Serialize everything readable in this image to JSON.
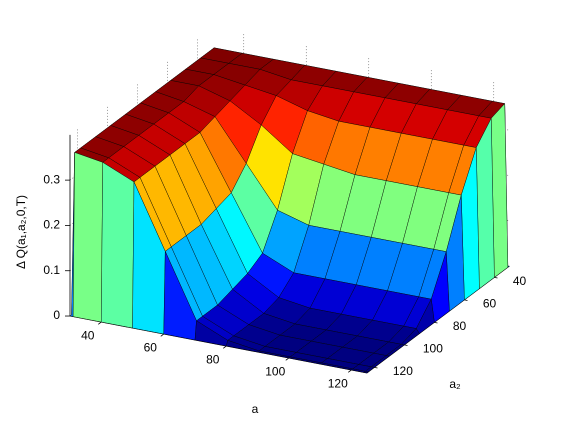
{
  "chart_data": {
    "type": "surface",
    "xlabel": "a",
    "ylabel": "a₂",
    "zlabel": "Δ Q(a₁,a₂,0,T)",
    "x": [
      30,
      31,
      40,
      50,
      60,
      70,
      80,
      90,
      100,
      110,
      120,
      124,
      125
    ],
    "y": [
      30,
      31,
      40,
      50,
      60,
      70,
      80,
      90,
      100,
      110,
      120,
      124,
      125
    ],
    "z": [
      [
        0,
        0,
        0,
        0,
        0,
        0,
        0,
        0,
        0,
        0,
        0,
        0,
        0
      ],
      [
        0,
        0.36,
        0.36,
        0.36,
        0.36,
        0.36,
        0.36,
        0.36,
        0.36,
        0.36,
        0.36,
        0.36,
        0
      ],
      [
        0,
        0.36,
        0.36,
        0.36,
        0.35,
        0.35,
        0.35,
        0.35,
        0.35,
        0.35,
        0.35,
        0.35,
        0
      ],
      [
        0,
        0.36,
        0.36,
        0.35,
        0.34,
        0.32,
        0.31,
        0.31,
        0.31,
        0.31,
        0.31,
        0.31,
        0
      ],
      [
        0,
        0.36,
        0.36,
        0.34,
        0.3,
        0.25,
        0.24,
        0.23,
        0.23,
        0.23,
        0.23,
        0.23,
        0
      ],
      [
        0,
        0.36,
        0.35,
        0.33,
        0.24,
        0.15,
        0.13,
        0.13,
        0.13,
        0.13,
        0.13,
        0.13,
        0
      ],
      [
        0,
        0.36,
        0.35,
        0.32,
        0.2,
        0.08,
        0.05,
        0.05,
        0.05,
        0.05,
        0.05,
        0.05,
        0
      ],
      [
        0,
        0.36,
        0.35,
        0.32,
        0.19,
        0.06,
        0.02,
        0.01,
        0.01,
        0.01,
        0.01,
        0.01,
        0
      ],
      [
        0,
        0.36,
        0.35,
        0.32,
        0.18,
        0.05,
        0.01,
        0,
        0,
        0,
        0,
        0,
        0
      ],
      [
        0,
        0.36,
        0.35,
        0.32,
        0.18,
        0.04,
        0.01,
        0,
        0,
        0,
        0,
        0,
        0
      ],
      [
        0,
        0.36,
        0.35,
        0.32,
        0.18,
        0.04,
        0.01,
        0,
        0,
        0,
        0,
        0,
        0
      ],
      [
        0,
        0.36,
        0.35,
        0.32,
        0.18,
        0.04,
        0.01,
        0,
        0,
        0,
        0,
        0,
        0
      ],
      [
        0,
        0,
        0,
        0,
        0,
        0,
        0,
        0,
        0,
        0,
        0,
        0,
        0
      ]
    ],
    "xlim": [
      30,
      125
    ],
    "ylim": [
      30,
      125
    ],
    "zlim": [
      0,
      0.4
    ],
    "xticks": [
      40,
      60,
      80,
      100,
      120
    ],
    "yticks": [
      40,
      60,
      80,
      100,
      120
    ],
    "zticks": [
      0,
      0.1,
      0.2,
      0.3
    ],
    "colormap": "jet",
    "grid": true
  }
}
